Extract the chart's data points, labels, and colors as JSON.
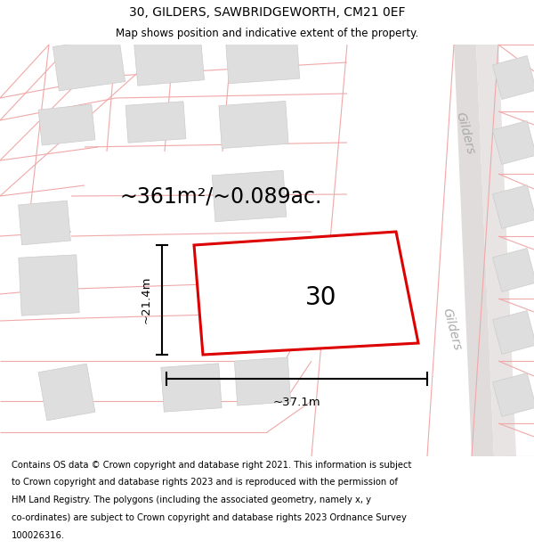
{
  "title": "30, GILDERS, SAWBRIDGEWORTH, CM21 0EF",
  "subtitle": "Map shows position and indicative extent of the property.",
  "area_text": "~361m²/~0.089ac.",
  "label_30": "30",
  "dim_width": "~37.1m",
  "dim_height": "~21.4m",
  "street_label_top": "Gilders",
  "street_label_mid": "Gilders",
  "footer_lines": [
    "Contains OS data © Crown copyright and database right 2021. This information is subject",
    "to Crown copyright and database rights 2023 and is reproduced with the permission of",
    "HM Land Registry. The polygons (including the associated geometry, namely x, y",
    "co-ordinates) are subject to Crown copyright and database rights 2023 Ordnance Survey",
    "100026316."
  ],
  "map_bg": "#ffffff",
  "road_fill": "#e8e4e4",
  "road_line_color": "#f0a8a8",
  "plot_edge_color": "#dd0000",
  "building_fill": "#dedede",
  "building_edge": "#cccccc",
  "title_fontsize": 10,
  "subtitle_fontsize": 8.5,
  "footer_fontsize": 7.2,
  "area_fontsize": 17,
  "label_fontsize": 20,
  "dim_fontsize": 9.5,
  "street_fontsize": 10
}
